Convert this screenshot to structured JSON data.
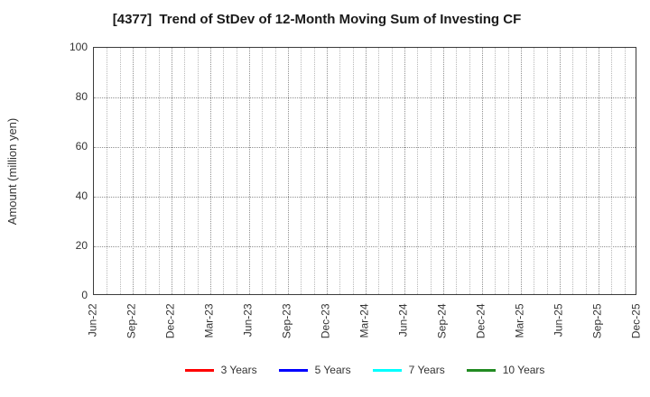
{
  "chart_data": {
    "type": "line",
    "title": "[4377]  Trend of StDev of 12-Month Moving Sum of Investing CF",
    "ylabel": "Amount (million yen)",
    "xlabel": "",
    "ylim": [
      0,
      100
    ],
    "yticks": [
      0,
      20,
      40,
      60,
      80,
      100
    ],
    "x_tick_labels": [
      "Jun-22",
      "Sep-22",
      "Dec-22",
      "Mar-23",
      "Jun-23",
      "Sep-23",
      "Dec-23",
      "Mar-24",
      "Jun-24",
      "Sep-24",
      "Dec-24",
      "Mar-25",
      "Jun-25",
      "Sep-25",
      "Dec-25"
    ],
    "months_between_labels": 3,
    "total_month_gridlines": 43,
    "grid": true,
    "grid_style": "dotted",
    "legend_position": "bottom",
    "plot_is_empty": true,
    "series": [
      {
        "name": "3 Years",
        "color": "#ff0000",
        "values": []
      },
      {
        "name": "5 Years",
        "color": "#0000ff",
        "values": []
      },
      {
        "name": "7 Years",
        "color": "#00ffff",
        "values": []
      },
      {
        "name": "10 Years",
        "color": "#228b22",
        "values": []
      }
    ]
  }
}
